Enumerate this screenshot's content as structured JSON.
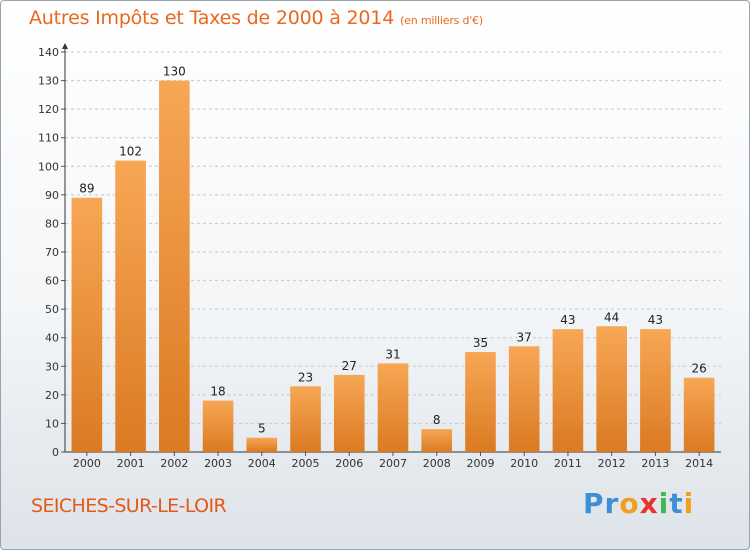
{
  "header": {
    "title": "Autres Impôts et Taxes de 2000 à 2014",
    "subtitle": "(en milliers d'€)"
  },
  "footer": {
    "place": "SEICHES-SUR-LE-LOIR",
    "brand": [
      "P",
      "r",
      "o",
      "x",
      "i",
      "t",
      "i"
    ],
    "brand_colors": [
      "#3d8fd6",
      "#3d8fd6",
      "#f0a020",
      "#e8342a",
      "#3db84a",
      "#3d8fd6",
      "#f0a020"
    ]
  },
  "colors": {
    "bar_light": "#f7a755",
    "bar_dark": "#db7a22",
    "accent": "#e8691e"
  },
  "chart_data": {
    "type": "bar",
    "title": "Autres Impôts et Taxes de 2000 à 2014",
    "subtitle": "(en milliers d'€)",
    "categories": [
      "2000",
      "2001",
      "2002",
      "2003",
      "2004",
      "2005",
      "2006",
      "2007",
      "2008",
      "2009",
      "2010",
      "2011",
      "2012",
      "2013",
      "2014"
    ],
    "values": [
      89,
      102,
      130,
      18,
      5,
      23,
      27,
      31,
      8,
      35,
      37,
      43,
      44,
      43,
      26
    ],
    "ylim": [
      0,
      140
    ],
    "yticks": [
      0,
      10,
      20,
      30,
      40,
      50,
      60,
      70,
      80,
      90,
      100,
      110,
      120,
      130,
      140
    ],
    "grid": true,
    "legend": "none"
  }
}
